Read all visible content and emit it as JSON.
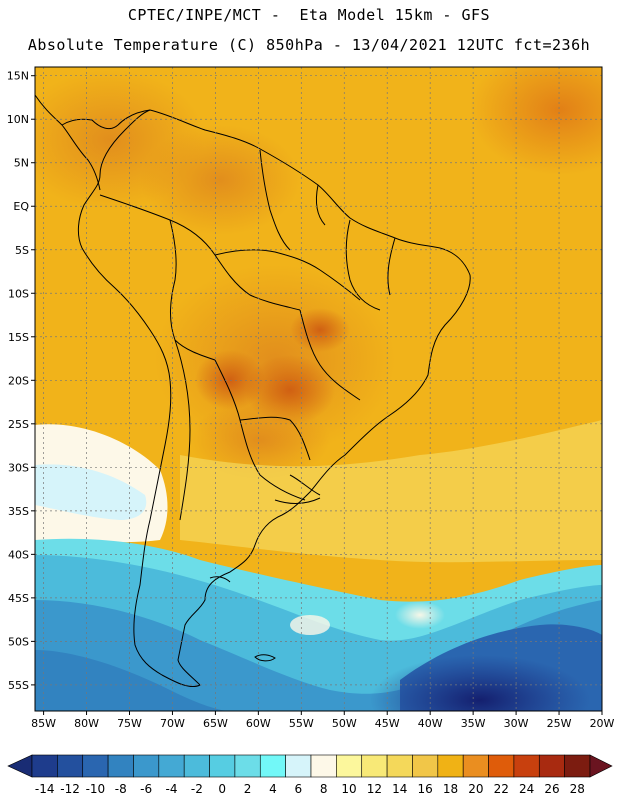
{
  "title": {
    "line1": "CPTEC/INPE/MCT -  Eta Model 15km - GFS",
    "line2": "Absolute Temperature (C) 850hPa - 13/04/2021 12UTC fct=236h"
  },
  "map": {
    "region": "South America",
    "lon_range": [
      -86,
      -20
    ],
    "lat_range": [
      16,
      -58
    ],
    "lat_labels": [
      {
        "lat": 15,
        "text": "15N"
      },
      {
        "lat": 10,
        "text": "10N"
      },
      {
        "lat": 5,
        "text": "5N"
      },
      {
        "lat": 0,
        "text": "EQ"
      },
      {
        "lat": -5,
        "text": "5S"
      },
      {
        "lat": -10,
        "text": "10S"
      },
      {
        "lat": -15,
        "text": "15S"
      },
      {
        "lat": -20,
        "text": "20S"
      },
      {
        "lat": -25,
        "text": "25S"
      },
      {
        "lat": -30,
        "text": "30S"
      },
      {
        "lat": -35,
        "text": "35S"
      },
      {
        "lat": -40,
        "text": "40S"
      },
      {
        "lat": -45,
        "text": "45S"
      },
      {
        "lat": -50,
        "text": "50S"
      },
      {
        "lat": -55,
        "text": "55S"
      }
    ],
    "lon_labels": [
      {
        "lon": -85,
        "text": "85W"
      },
      {
        "lon": -80,
        "text": "80W"
      },
      {
        "lon": -75,
        "text": "75W"
      },
      {
        "lon": -70,
        "text": "70W"
      },
      {
        "lon": -65,
        "text": "65W"
      },
      {
        "lon": -60,
        "text": "60W"
      },
      {
        "lon": -55,
        "text": "55W"
      },
      {
        "lon": -50,
        "text": "50W"
      },
      {
        "lon": -45,
        "text": "45W"
      },
      {
        "lon": -40,
        "text": "40W"
      },
      {
        "lon": -35,
        "text": "35W"
      },
      {
        "lon": -30,
        "text": "30W"
      },
      {
        "lon": -25,
        "text": "25W"
      },
      {
        "lon": -20,
        "text": "20W"
      }
    ]
  },
  "colorbar": {
    "labels": [
      "-14",
      "-12",
      "-10",
      "-8",
      "-6",
      "-4",
      "-2",
      "0",
      "2",
      "4",
      "6",
      "8",
      "10",
      "12",
      "14",
      "16",
      "18",
      "20",
      "22",
      "24",
      "26",
      "28"
    ],
    "colors": [
      "#1e3c8c",
      "#23509e",
      "#2a66b0",
      "#3283c0",
      "#3b98cc",
      "#44a9d4",
      "#4cbbdb",
      "#56cde2",
      "#6cdde8",
      "#72f8f8",
      "#d6f4fa",
      "#fdf8e8",
      "#fcf79c",
      "#f8e977",
      "#f4d85a",
      "#f1c648",
      "#f0b215",
      "#ea8e20",
      "#df5c0a",
      "#c8400e",
      "#a82a10",
      "#7c1c10"
    ],
    "under_color": "#192c74",
    "over_color": "#6a1420"
  }
}
